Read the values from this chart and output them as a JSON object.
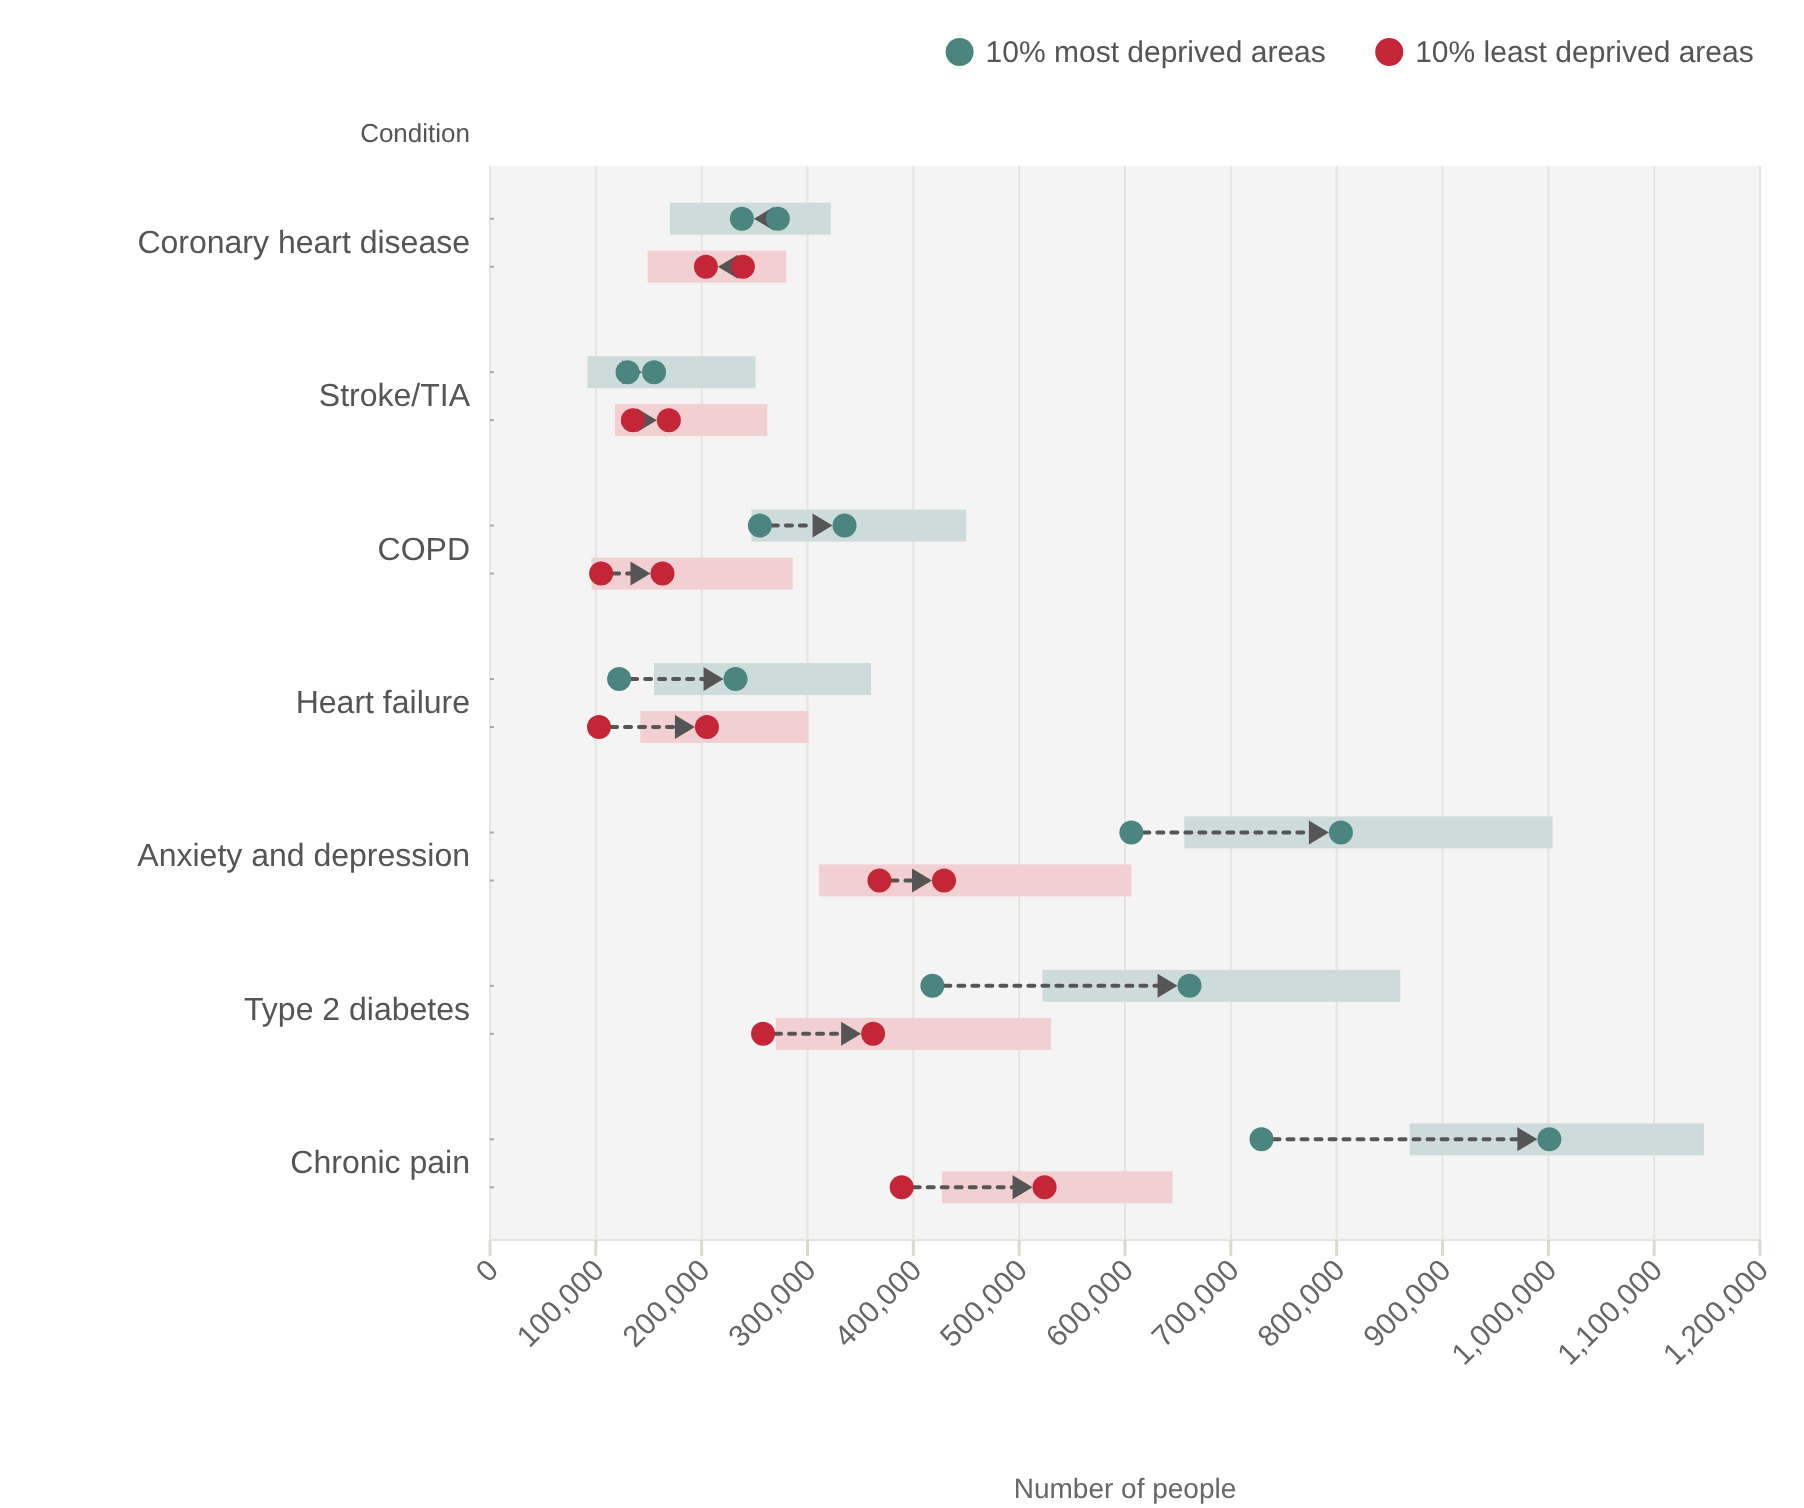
{
  "chart_data": {
    "type": "bar",
    "orientation": "horizontal",
    "ylabel": "Condition",
    "xlabel": "Number of people",
    "categories": [
      "Coronary heart disease",
      "Stroke/TIA",
      "COPD",
      "Heart failure",
      "Anxiety and depression",
      "Type 2 diabetes",
      "Chronic pain"
    ],
    "series": [
      {
        "type": "bar",
        "color": "#cddcdb",
        "base": [
          170000,
          92000,
          247000,
          155000,
          656000,
          522000,
          869000
        ],
        "values": [
          152000,
          159000,
          203000,
          205000,
          348000,
          338000,
          278000
        ]
      },
      {
        "type": "bar",
        "color": "#f2cfd1",
        "base": [
          149000,
          118000,
          96000,
          142000,
          311000,
          270000,
          427000
        ],
        "values": [
          131000,
          144000,
          190000,
          159000,
          295000,
          260000,
          218000
        ]
      },
      {
        "type": "scatter",
        "name": "10% most deprived areas",
        "color": "#4a8580",
        "values": [
          272000,
          130000,
          255000,
          122000,
          606000,
          418000,
          729000
        ]
      },
      {
        "type": "scatter",
        "color": "#4a8580",
        "values": [
          238000,
          155000,
          335000,
          232000,
          804000,
          661000,
          1001000
        ]
      },
      {
        "type": "scatter",
        "name": "10% least deprived areas",
        "color": "#c42537",
        "values": [
          239000,
          135000,
          105000,
          103000,
          368000,
          258000,
          389000
        ]
      },
      {
        "type": "scatter",
        "color": "#c42537",
        "values": [
          204000,
          169000,
          163000,
          205000,
          429000,
          362000,
          524000
        ]
      }
    ],
    "xlim": [
      0,
      1200000
    ],
    "xticks": [
      0,
      {
        "value": 100000,
        "label": "100,000"
      },
      {
        "value": 200000,
        "label": "200,000"
      },
      {
        "value": 300000,
        "label": "300,000"
      },
      {
        "value": 400000,
        "label": "400,000"
      },
      {
        "value": 500000,
        "label": "500,000"
      },
      {
        "value": 600000,
        "label": "600,000"
      },
      {
        "value": 700000,
        "label": "700,000"
      },
      {
        "value": 800000,
        "label": "800,000"
      },
      {
        "value": 900000,
        "label": "900,000"
      },
      {
        "value": 1000000,
        "label": "1,000,000"
      },
      {
        "value": 1100000,
        "label": "1,100,000"
      },
      {
        "value": 1200000,
        "label": "1,200,000"
      }
    ],
    "grid": "x",
    "legend": "top right",
    "marker": "circle",
    "line_style": "dashed"
  }
}
